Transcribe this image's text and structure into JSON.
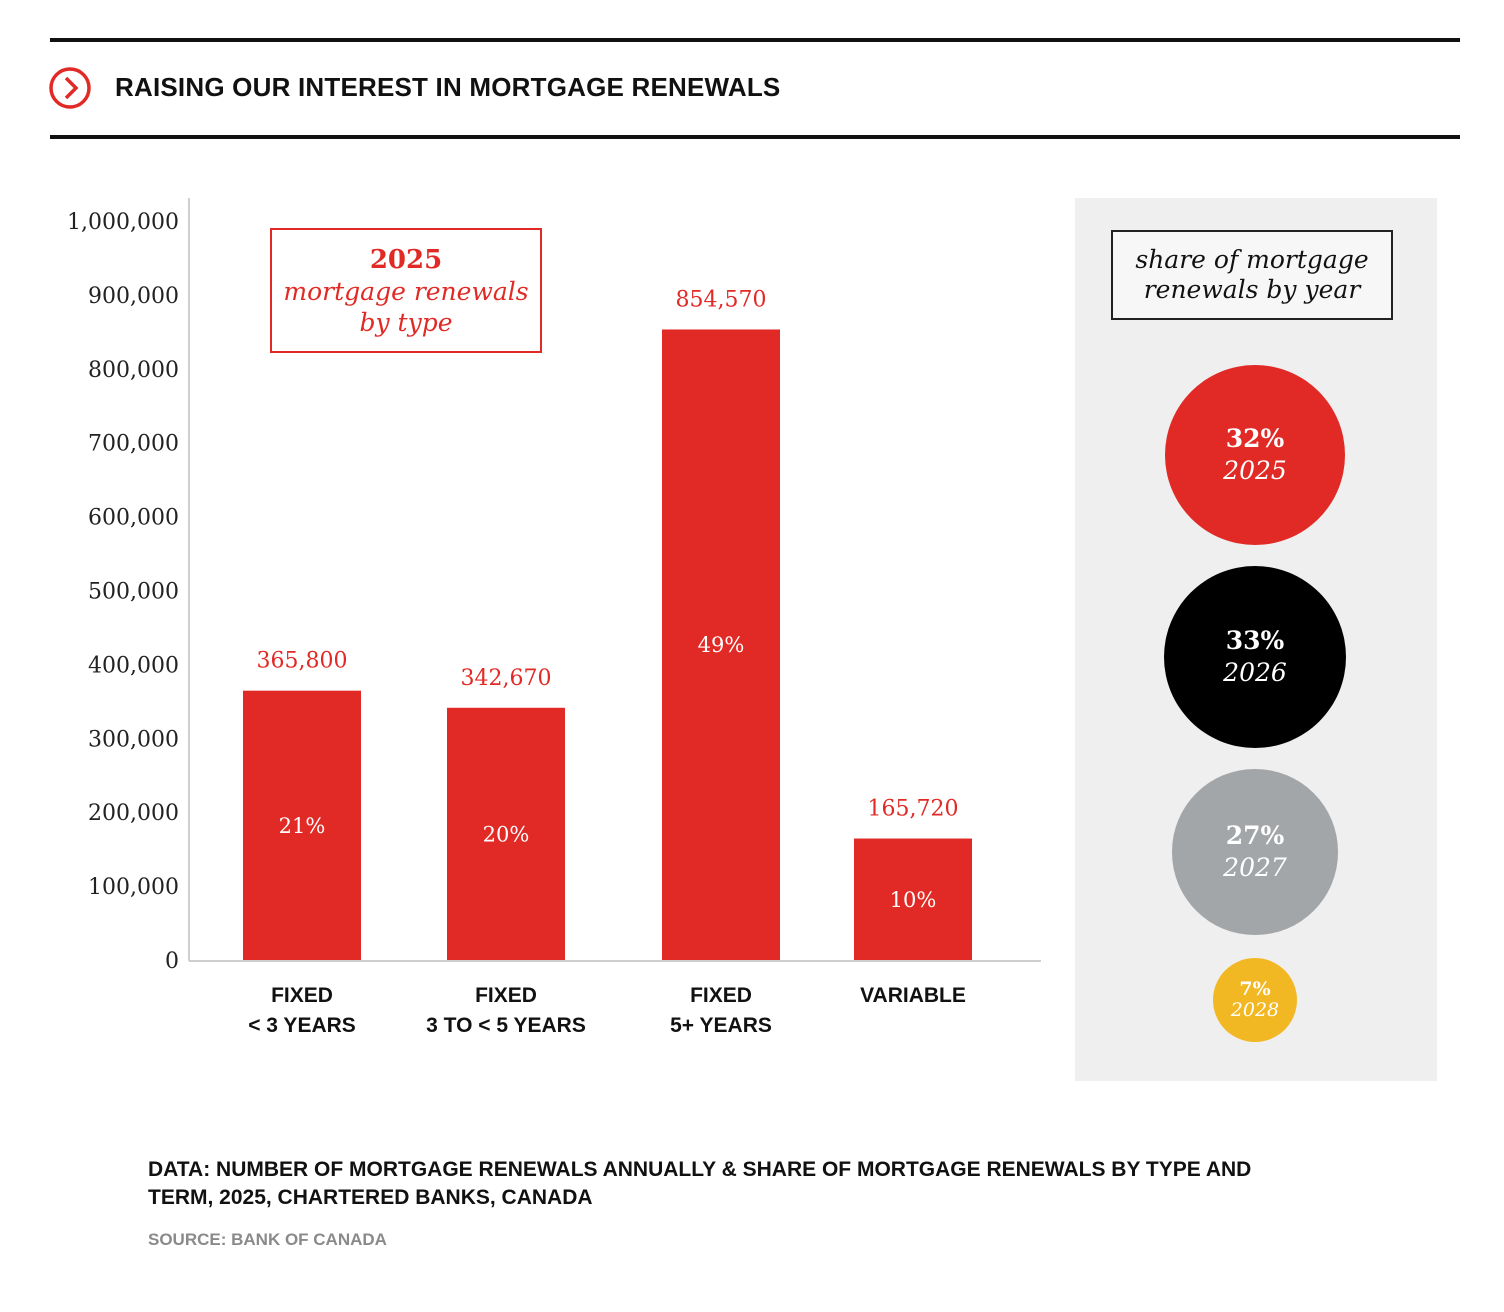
{
  "header": {
    "title": "RAISING OUR INTEREST IN MORTGAGE RENEWALS",
    "icon": "chevron-right-circle-icon",
    "accent": "#e12a25"
  },
  "type_box": {
    "year": "2025",
    "line1": "mortgage renewals",
    "line2": "by type"
  },
  "chart_data": {
    "type": "bar",
    "categories": [
      [
        "FIXED",
        "< 3 YEARS"
      ],
      [
        "FIXED",
        "3 TO < 5 YEARS"
      ],
      [
        "FIXED",
        "5+ YEARS"
      ],
      [
        "VARIABLE"
      ]
    ],
    "values": [
      365800,
      342670,
      854570,
      165720
    ],
    "value_labels": [
      "365,800",
      "342,670",
      "854,570",
      "165,720"
    ],
    "share_labels": [
      "21%",
      "20%",
      "49%",
      "10%"
    ],
    "yticks": [
      "0",
      "100,000",
      "200,000",
      "300,000",
      "400,000",
      "500,000",
      "600,000",
      "700,000",
      "800,000",
      "900,000",
      "1,000,000"
    ],
    "ylim": [
      0,
      1000000
    ],
    "bar_color": "#e12a25",
    "grid": false
  },
  "share_panel": {
    "title_line1": "share of mortgage",
    "title_line2": "renewals by year",
    "items": [
      {
        "pct": "32%",
        "year": "2025",
        "value": 32,
        "color": "#e12a25"
      },
      {
        "pct": "33%",
        "year": "2026",
        "value": 33,
        "color": "#000000"
      },
      {
        "pct": "27%",
        "year": "2027",
        "value": 27,
        "color": "#a3a6a8"
      },
      {
        "pct": "7%",
        "year": "2028",
        "value": 7,
        "color": "#f2b824"
      }
    ]
  },
  "footnote": {
    "line1": "DATA: NUMBER OF MORTGAGE RENEWALS ANNUALLY & SHARE OF MORTGAGE RENEWALS BY TYPE AND",
    "line2": "TERM, 2025, CHARTERED BANKS, CANADA",
    "source": "SOURCE: BANK OF CANADA"
  }
}
